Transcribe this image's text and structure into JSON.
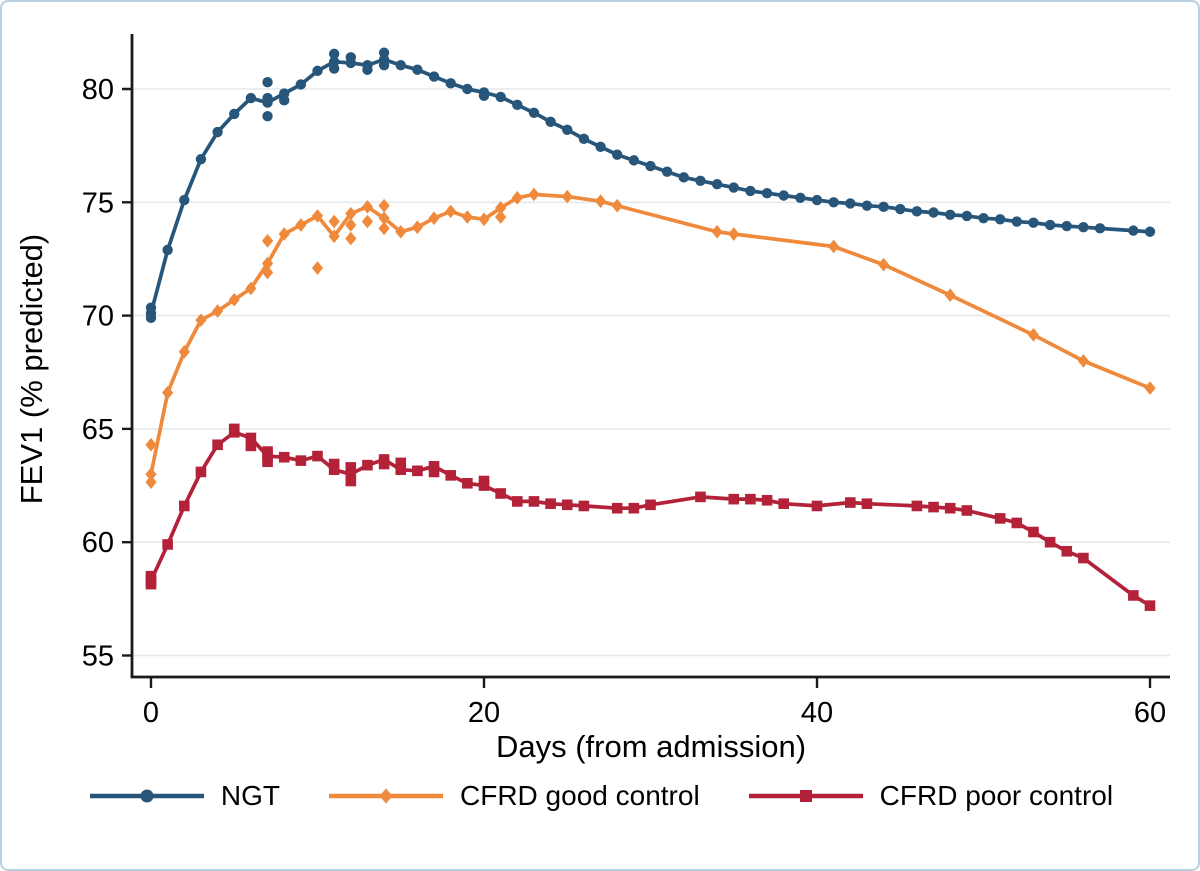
{
  "figure": {
    "background_color": "#ffffff",
    "border_color": "#b9cfe0"
  },
  "chart_data": {
    "type": "line",
    "title": "",
    "xlabel": "Days (from admission)",
    "ylabel": "FEV1 (% predicted)",
    "xlim": [
      0,
      60
    ],
    "ylim": [
      55,
      81.8
    ],
    "xticks": [
      0,
      20,
      40,
      60
    ],
    "yticks": [
      55,
      60,
      65,
      70,
      75,
      80
    ],
    "grid": "horizontal",
    "gridline_color": "#e6e9ec",
    "axis_color": "#1a1a1a",
    "legend_position": "bottom",
    "series": [
      {
        "name": "NGT",
        "color": "#27567a",
        "marker": "circle",
        "points": [
          [
            0,
            70.1
          ],
          [
            1,
            72.9
          ],
          [
            2,
            75.1
          ],
          [
            3,
            76.9
          ],
          [
            4,
            78.1
          ],
          [
            5,
            78.9
          ],
          [
            6,
            79.6
          ],
          [
            7,
            79.4
          ],
          [
            8,
            79.8
          ],
          [
            9,
            80.2
          ],
          [
            10,
            80.8
          ],
          [
            11,
            81.2
          ],
          [
            12,
            81.15
          ],
          [
            13,
            81.05
          ],
          [
            14,
            81.3
          ],
          [
            15,
            81.05
          ],
          [
            16,
            80.85
          ],
          [
            17,
            80.55
          ],
          [
            18,
            80.25
          ],
          [
            19,
            80.0
          ],
          [
            20,
            79.85
          ],
          [
            21,
            79.65
          ],
          [
            22,
            79.3
          ],
          [
            23,
            78.95
          ],
          [
            24,
            78.55
          ],
          [
            25,
            78.2
          ],
          [
            26,
            77.8
          ],
          [
            27,
            77.45
          ],
          [
            28,
            77.1
          ],
          [
            29,
            76.85
          ],
          [
            30,
            76.6
          ],
          [
            31,
            76.35
          ],
          [
            32,
            76.1
          ],
          [
            33,
            75.95
          ],
          [
            34,
            75.8
          ],
          [
            35,
            75.65
          ],
          [
            36,
            75.5
          ],
          [
            37,
            75.4
          ],
          [
            38,
            75.3
          ],
          [
            39,
            75.2
          ],
          [
            40,
            75.1
          ],
          [
            41,
            75.0
          ],
          [
            42,
            74.95
          ],
          [
            43,
            74.85
          ],
          [
            44,
            74.8
          ],
          [
            45,
            74.7
          ],
          [
            46,
            74.6
          ],
          [
            47,
            74.55
          ],
          [
            48,
            74.45
          ],
          [
            49,
            74.4
          ],
          [
            50,
            74.3
          ],
          [
            51,
            74.25
          ],
          [
            52,
            74.15
          ],
          [
            53,
            74.1
          ],
          [
            54,
            74.0
          ],
          [
            55,
            73.95
          ],
          [
            56,
            73.9
          ],
          [
            57,
            73.85
          ],
          [
            59,
            73.75
          ],
          [
            60,
            73.7
          ]
        ],
        "extra_points": [
          [
            0,
            69.9
          ],
          [
            0,
            70.35
          ],
          [
            7,
            78.8
          ],
          [
            7,
            79.6
          ],
          [
            7,
            80.3
          ],
          [
            8,
            79.5
          ],
          [
            11,
            80.9
          ],
          [
            11,
            81.55
          ],
          [
            12,
            81.4
          ],
          [
            13,
            80.85
          ],
          [
            14,
            81.05
          ],
          [
            14,
            81.6
          ],
          [
            20,
            79.7
          ]
        ]
      },
      {
        "name": "CFRD good control",
        "color": "#ef8a3c",
        "marker": "diamond",
        "points": [
          [
            0,
            63.0
          ],
          [
            1,
            66.6
          ],
          [
            2,
            68.4
          ],
          [
            3,
            69.8
          ],
          [
            4,
            70.2
          ],
          [
            5,
            70.7
          ],
          [
            6,
            71.2
          ],
          [
            7,
            72.3
          ],
          [
            8,
            73.6
          ],
          [
            9,
            74.0
          ],
          [
            10,
            74.4
          ],
          [
            11,
            73.5
          ],
          [
            12,
            74.5
          ],
          [
            13,
            74.8
          ],
          [
            14,
            74.3
          ],
          [
            15,
            73.7
          ],
          [
            16,
            73.9
          ],
          [
            17,
            74.3
          ],
          [
            18,
            74.6
          ],
          [
            19,
            74.35
          ],
          [
            20,
            74.25
          ],
          [
            21,
            74.75
          ],
          [
            22,
            75.2
          ],
          [
            23,
            75.35
          ],
          [
            25,
            75.25
          ],
          [
            27,
            75.05
          ],
          [
            28,
            74.85
          ],
          [
            34,
            73.7
          ],
          [
            35,
            73.6
          ],
          [
            41,
            73.05
          ],
          [
            44,
            72.25
          ],
          [
            48,
            70.9
          ],
          [
            53,
            69.15
          ],
          [
            56,
            68.0
          ],
          [
            60,
            66.8
          ]
        ],
        "extra_points": [
          [
            0,
            62.65
          ],
          [
            0,
            64.3
          ],
          [
            7,
            71.9
          ],
          [
            7,
            73.3
          ],
          [
            10,
            72.1
          ],
          [
            11,
            74.15
          ],
          [
            12,
            73.4
          ],
          [
            12,
            74.0
          ],
          [
            13,
            74.15
          ],
          [
            14,
            73.85
          ],
          [
            14,
            74.85
          ],
          [
            21,
            74.35
          ]
        ]
      },
      {
        "name": "CFRD poor control",
        "color": "#b42239",
        "marker": "square",
        "points": [
          [
            0,
            58.3
          ],
          [
            1,
            59.9
          ],
          [
            2,
            61.6
          ],
          [
            3,
            63.1
          ],
          [
            4,
            64.3
          ],
          [
            5,
            64.85
          ],
          [
            6,
            64.6
          ],
          [
            7,
            63.8
          ],
          [
            8,
            63.75
          ],
          [
            9,
            63.6
          ],
          [
            10,
            63.8
          ],
          [
            11,
            63.2
          ],
          [
            12,
            63.0
          ],
          [
            13,
            63.4
          ],
          [
            14,
            63.65
          ],
          [
            15,
            63.2
          ],
          [
            16,
            63.15
          ],
          [
            17,
            63.35
          ],
          [
            18,
            62.95
          ],
          [
            19,
            62.6
          ],
          [
            20,
            62.5
          ],
          [
            21,
            62.15
          ],
          [
            22,
            61.8
          ],
          [
            23,
            61.8
          ],
          [
            24,
            61.7
          ],
          [
            25,
            61.65
          ],
          [
            26,
            61.6
          ],
          [
            28,
            61.5
          ],
          [
            29,
            61.5
          ],
          [
            30,
            61.65
          ],
          [
            33,
            62.0
          ],
          [
            35,
            61.9
          ],
          [
            36,
            61.9
          ],
          [
            37,
            61.85
          ],
          [
            38,
            61.7
          ],
          [
            40,
            61.6
          ],
          [
            42,
            61.75
          ],
          [
            43,
            61.7
          ],
          [
            46,
            61.6
          ],
          [
            47,
            61.55
          ],
          [
            48,
            61.5
          ],
          [
            49,
            61.4
          ],
          [
            51,
            61.05
          ],
          [
            52,
            60.85
          ],
          [
            53,
            60.45
          ],
          [
            54,
            60.0
          ],
          [
            55,
            59.6
          ],
          [
            56,
            59.3
          ],
          [
            59,
            57.65
          ],
          [
            60,
            57.2
          ]
        ],
        "extra_points": [
          [
            0,
            58.15
          ],
          [
            0,
            58.5
          ],
          [
            5,
            65.0
          ],
          [
            6,
            64.25
          ],
          [
            7,
            63.55
          ],
          [
            7,
            64.0
          ],
          [
            11,
            63.45
          ],
          [
            12,
            62.7
          ],
          [
            12,
            63.3
          ],
          [
            14,
            63.45
          ],
          [
            15,
            63.5
          ],
          [
            17,
            63.1
          ],
          [
            20,
            62.7
          ]
        ]
      }
    ]
  }
}
